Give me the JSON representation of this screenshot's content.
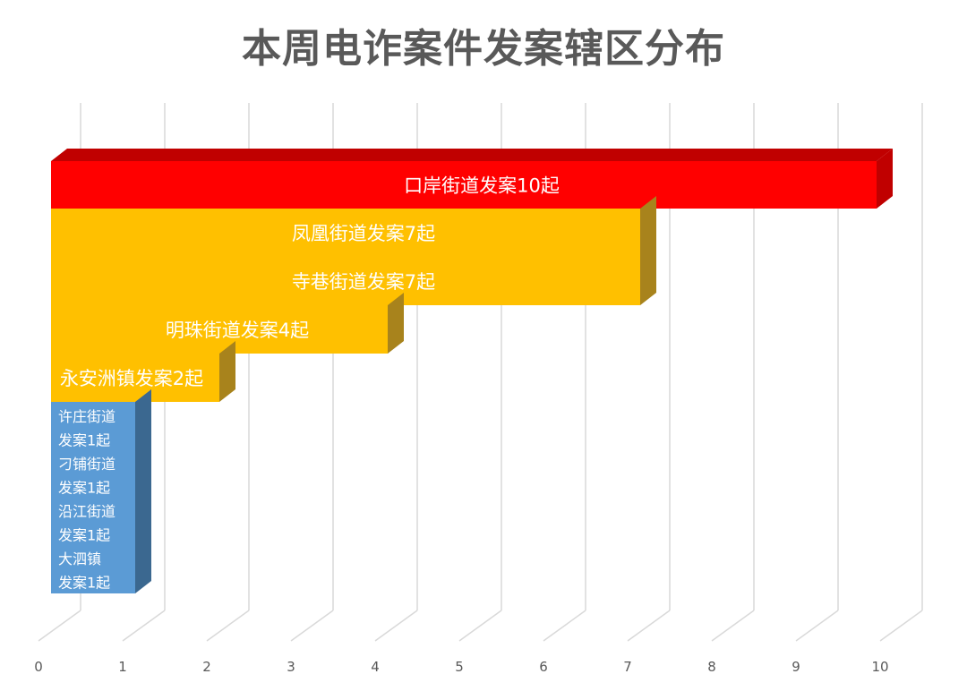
{
  "chart_data": {
    "type": "bar",
    "orientation": "horizontal",
    "style": "3d-stacked-rows",
    "title": "本周电诈案件发案辖区分布",
    "xlabel": "",
    "ylabel": "",
    "xlim": [
      0,
      10
    ],
    "x_ticks": [
      "0",
      "1",
      "2",
      "3",
      "4",
      "5",
      "6",
      "7",
      "8",
      "9",
      "10"
    ],
    "grid": true,
    "legend": "none",
    "colors": {
      "high": "#ff0000",
      "high_side": "#c00000",
      "medium": "#ffc000",
      "medium_side": "#a8831c",
      "low": "#5b9bd5",
      "low_side": "#3b6890",
      "axis_text": "#595959",
      "grid": "#d9d9d9"
    },
    "bars": [
      {
        "value": 10,
        "tier": "high",
        "labels": [
          "口岸街道发案10起"
        ]
      },
      {
        "value": 7,
        "tier": "medium",
        "labels": [
          "凤凰街道发案7起",
          "寺巷街道发案7起"
        ]
      },
      {
        "value": 4,
        "tier": "medium",
        "labels": [
          "明珠街道发案4起"
        ]
      },
      {
        "value": 2,
        "tier": "medium",
        "labels": [
          "永安洲镇发案2起"
        ]
      },
      {
        "value": 1,
        "tier": "low",
        "labels": [
          "许庄街道",
          "发案1起",
          "刁铺街道",
          "发案1起",
          "沿江街道",
          "发案1起",
          "大泗镇",
          "发案1起"
        ]
      }
    ]
  }
}
